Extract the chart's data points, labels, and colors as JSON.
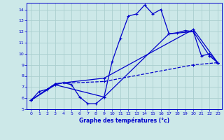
{
  "title": "Graphe des températures (°c)",
  "bg_color": "#cce8e8",
  "grid_color": "#aacece",
  "line_color": "#0000cc",
  "xlim": [
    -0.5,
    23.5
  ],
  "ylim": [
    5,
    14.6
  ],
  "yticks": [
    5,
    6,
    7,
    8,
    9,
    10,
    11,
    12,
    13,
    14
  ],
  "xticks": [
    0,
    1,
    2,
    3,
    4,
    5,
    6,
    7,
    8,
    9,
    10,
    11,
    12,
    13,
    14,
    15,
    16,
    17,
    18,
    19,
    20,
    21,
    22,
    23
  ],
  "series1_x": [
    0,
    1,
    2,
    3,
    4,
    5,
    6,
    7,
    8,
    9,
    10,
    11,
    12,
    13,
    14,
    15,
    16,
    17,
    18,
    19,
    20,
    21,
    22,
    23
  ],
  "series1_y": [
    5.8,
    6.6,
    6.8,
    7.2,
    7.4,
    7.2,
    6.1,
    5.5,
    5.5,
    6.1,
    9.3,
    11.4,
    13.4,
    13.6,
    14.4,
    13.6,
    14.0,
    11.8,
    11.9,
    12.1,
    12.0,
    9.8,
    10.0,
    9.2
  ],
  "series2_x": [
    0,
    3,
    9,
    17,
    20,
    22,
    23
  ],
  "series2_y": [
    5.8,
    7.2,
    6.1,
    11.8,
    12.0,
    9.8,
    9.2
  ],
  "series3_x": [
    0,
    3,
    9,
    20,
    23
  ],
  "series3_y": [
    5.8,
    7.3,
    7.8,
    12.2,
    9.2
  ],
  "series4_x": [
    0,
    3,
    9,
    20,
    23
  ],
  "series4_y": [
    5.8,
    7.3,
    7.5,
    9.0,
    9.2
  ]
}
